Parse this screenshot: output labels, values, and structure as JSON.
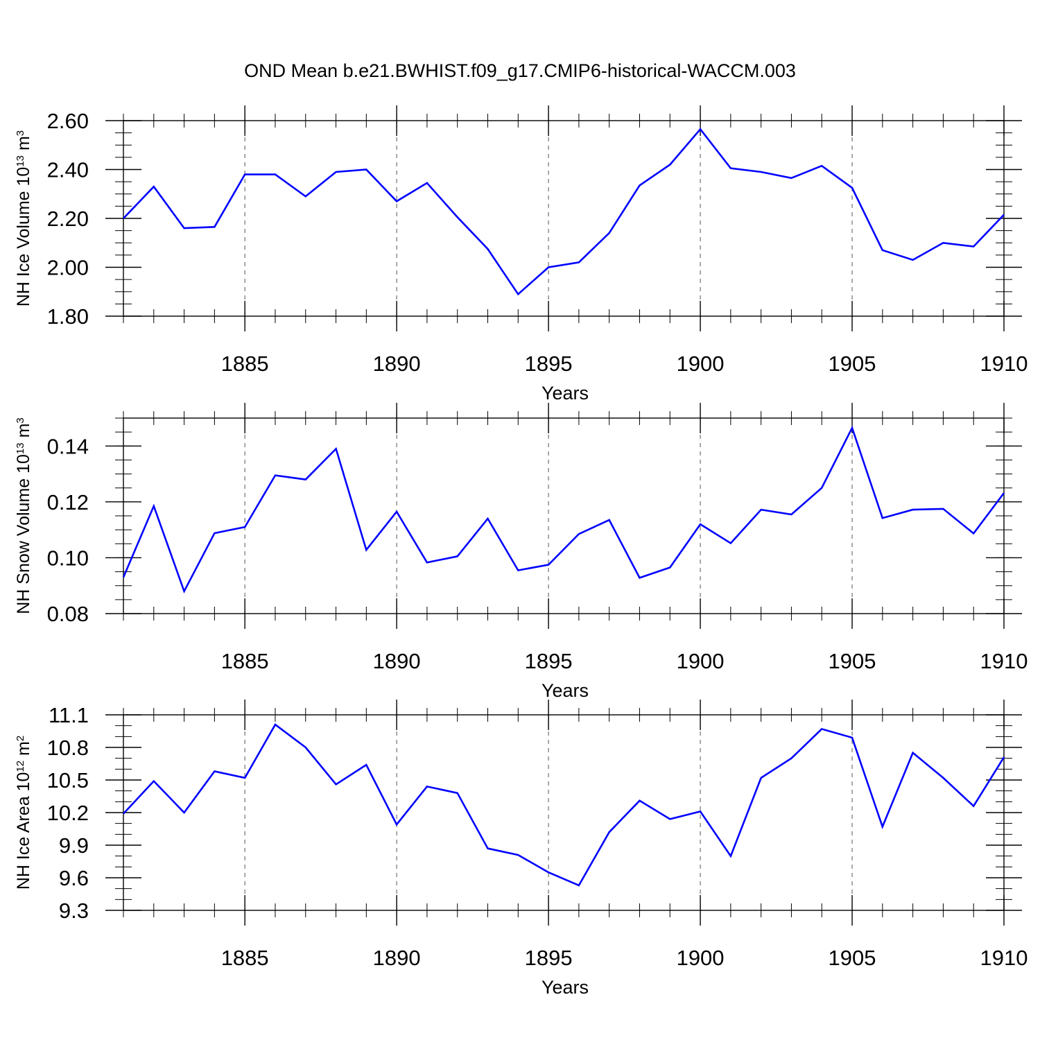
{
  "figure": {
    "title": "OND Mean b.e21.BWHIST.f09_g17.CMIP6-historical-WACCM.003",
    "line_color": "#0000ff"
  },
  "chart_data": [
    {
      "type": "line",
      "name": "ice-volume",
      "ylabel": "NH Ice Volume 10",
      "ylabel_exp": "13",
      "ylabel_unit": " m",
      "ylabel_unit_exp": "3",
      "xlabel": "Years",
      "xlim": [
        1881,
        1910
      ],
      "ylim": [
        1.8,
        2.6
      ],
      "yticks": [
        1.8,
        2.0,
        2.2,
        2.4,
        2.6
      ],
      "ytick_labels": [
        "1.80",
        "2.00",
        "2.20",
        "2.40",
        "2.60"
      ],
      "yminor_step": 0.05,
      "xticks": [
        1885,
        1890,
        1895,
        1900,
        1905,
        1910
      ],
      "xtick_labels": [
        "1885",
        "1890",
        "1895",
        "1900",
        "1905",
        "1910"
      ],
      "x": [
        1881,
        1882,
        1883,
        1884,
        1885,
        1886,
        1887,
        1888,
        1889,
        1890,
        1891,
        1892,
        1893,
        1894,
        1895,
        1896,
        1897,
        1898,
        1899,
        1900,
        1901,
        1902,
        1903,
        1904,
        1905,
        1906,
        1907,
        1908,
        1909,
        1910
      ],
      "values": [
        2.2,
        2.33,
        2.16,
        2.165,
        2.38,
        2.38,
        2.29,
        2.39,
        2.4,
        2.27,
        2.345,
        2.205,
        2.075,
        1.89,
        2.0,
        2.02,
        2.14,
        2.335,
        2.42,
        2.565,
        2.405,
        2.39,
        2.365,
        2.415,
        2.325,
        2.07,
        2.03,
        2.1,
        2.085,
        2.215
      ]
    },
    {
      "type": "line",
      "name": "snow-volume",
      "ylabel": "NH Snow Volume 10",
      "ylabel_exp": "13",
      "ylabel_unit": " m",
      "ylabel_unit_exp": "3",
      "xlabel": "Years",
      "xlim": [
        1881,
        1910
      ],
      "ylim": [
        0.08,
        0.15
      ],
      "yticks": [
        0.08,
        0.1,
        0.12,
        0.14
      ],
      "ytick_labels": [
        "0.08",
        "0.10",
        "0.12",
        "0.14"
      ],
      "yminor_step": 0.005,
      "xticks": [
        1885,
        1890,
        1895,
        1900,
        1905,
        1910
      ],
      "xtick_labels": [
        "1885",
        "1890",
        "1895",
        "1900",
        "1905",
        "1910"
      ],
      "x": [
        1881,
        1882,
        1883,
        1884,
        1885,
        1886,
        1887,
        1888,
        1889,
        1890,
        1891,
        1892,
        1893,
        1894,
        1895,
        1896,
        1897,
        1898,
        1899,
        1900,
        1901,
        1902,
        1903,
        1904,
        1905,
        1906,
        1907,
        1908,
        1909,
        1910
      ],
      "values": [
        0.093,
        0.1185,
        0.088,
        0.1088,
        0.111,
        0.1295,
        0.128,
        0.139,
        0.1028,
        0.1165,
        0.0983,
        0.1005,
        0.114,
        0.0955,
        0.0975,
        0.1085,
        0.1135,
        0.0928,
        0.0965,
        0.112,
        0.1052,
        0.1172,
        0.1155,
        0.125,
        0.1465,
        0.1142,
        0.1172,
        0.1175,
        0.1087,
        0.1232
      ]
    },
    {
      "type": "line",
      "name": "ice-area",
      "ylabel": "NH Ice Area 10",
      "ylabel_exp": "12",
      "ylabel_unit": " m",
      "ylabel_unit_exp": "2",
      "xlabel": "Years",
      "xlim": [
        1881,
        1910
      ],
      "ylim": [
        9.3,
        11.1
      ],
      "yticks": [
        9.3,
        9.6,
        9.9,
        10.2,
        10.5,
        10.8,
        11.1
      ],
      "ytick_labels": [
        "9.3",
        "9.6",
        "9.9",
        "10.2",
        "10.5",
        "10.8",
        "11.1"
      ],
      "yminor_step": 0.1,
      "xticks": [
        1885,
        1890,
        1895,
        1900,
        1905,
        1910
      ],
      "xtick_labels": [
        "1885",
        "1890",
        "1895",
        "1900",
        "1905",
        "1910"
      ],
      "x": [
        1881,
        1882,
        1883,
        1884,
        1885,
        1886,
        1887,
        1888,
        1889,
        1890,
        1891,
        1892,
        1893,
        1894,
        1895,
        1896,
        1897,
        1898,
        1899,
        1900,
        1901,
        1902,
        1903,
        1904,
        1905,
        1906,
        1907,
        1908,
        1909,
        1910
      ],
      "values": [
        10.19,
        10.49,
        10.2,
        10.58,
        10.52,
        11.01,
        10.8,
        10.46,
        10.64,
        10.09,
        10.44,
        10.38,
        9.87,
        9.81,
        9.65,
        9.53,
        10.02,
        10.31,
        10.14,
        10.21,
        9.8,
        10.52,
        10.7,
        10.97,
        10.89,
        10.07,
        10.75,
        10.52,
        10.26,
        10.71
      ]
    }
  ]
}
